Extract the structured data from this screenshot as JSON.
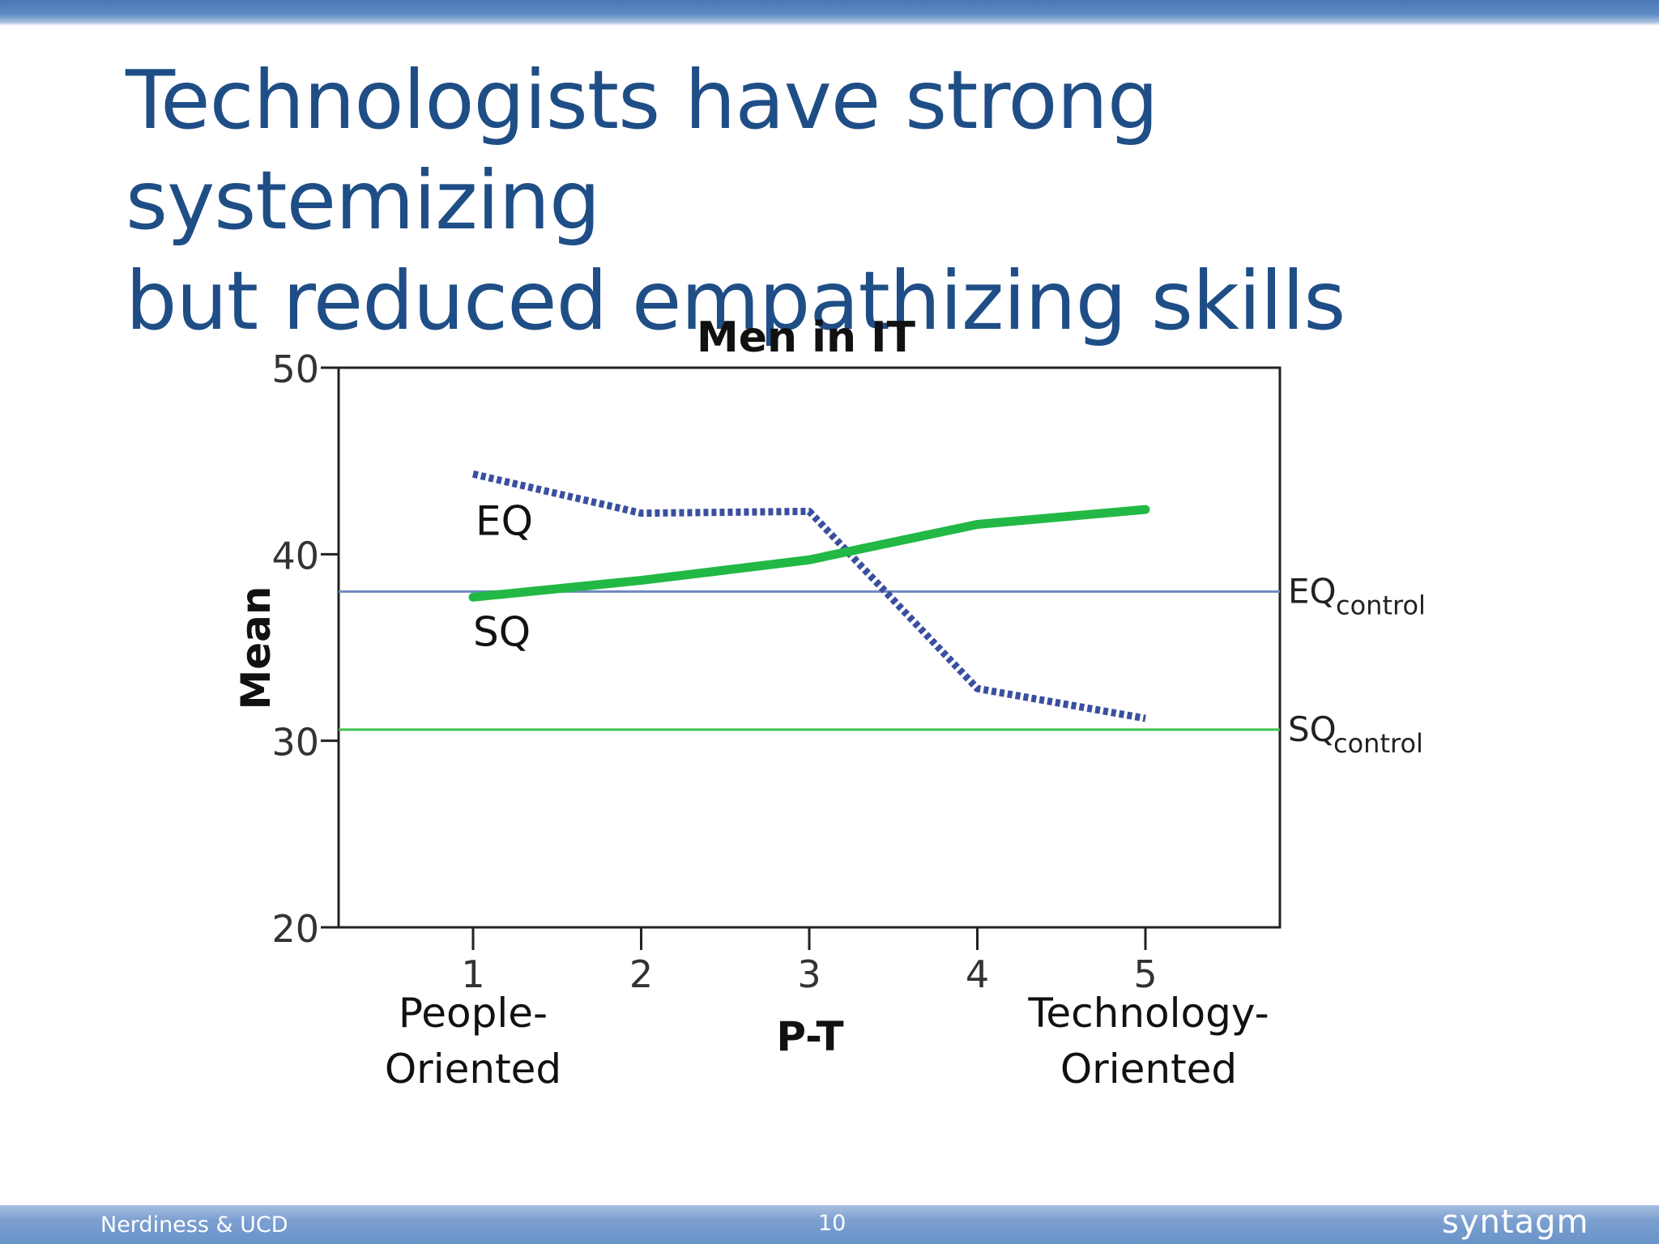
{
  "slide": {
    "title_line1": "Technologists have strong systemizing",
    "title_line2": "but reduced empathizing skills",
    "footer_left": "Nerdiness & UCD",
    "page_number": "10",
    "logo": "syntagm",
    "colors": {
      "title": "#1f4e86",
      "top_bar": "#4a78b8",
      "footer_bar": "#7b9fd0"
    }
  },
  "chart_data": {
    "type": "line",
    "title": "Men in IT",
    "xlabel": "P-T",
    "ylabel": "Mean",
    "x": [
      1,
      2,
      3,
      4,
      5
    ],
    "x_tick_labels": [
      "1",
      "2",
      "3",
      "4",
      "5"
    ],
    "x_end_labels": {
      "left_line1": "People-",
      "left_line2": "Oriented",
      "right_line1": "Technology-",
      "right_line2": "Oriented"
    },
    "ylim": [
      20,
      50
    ],
    "xlim": [
      0.2,
      5.8
    ],
    "y_ticks": [
      20,
      30,
      40,
      50
    ],
    "y_tick_labels": [
      "20",
      "30",
      "40",
      "50"
    ],
    "grid": false,
    "series": [
      {
        "name": "EQ",
        "values": [
          44.3,
          42.2,
          42.3,
          32.8,
          31.2
        ],
        "color": "#3a4fa0",
        "style": "dotted"
      },
      {
        "name": "SQ",
        "values": [
          37.7,
          38.6,
          39.7,
          41.6,
          42.4
        ],
        "color": "#22b845",
        "style": "solid"
      }
    ],
    "reference_lines": [
      {
        "name_main": "EQ",
        "name_sub": "control",
        "value": 38.0,
        "color": "#7088c0"
      },
      {
        "name_main": "SQ",
        "name_sub": "control",
        "value": 30.6,
        "color": "#3fc14f"
      }
    ]
  }
}
